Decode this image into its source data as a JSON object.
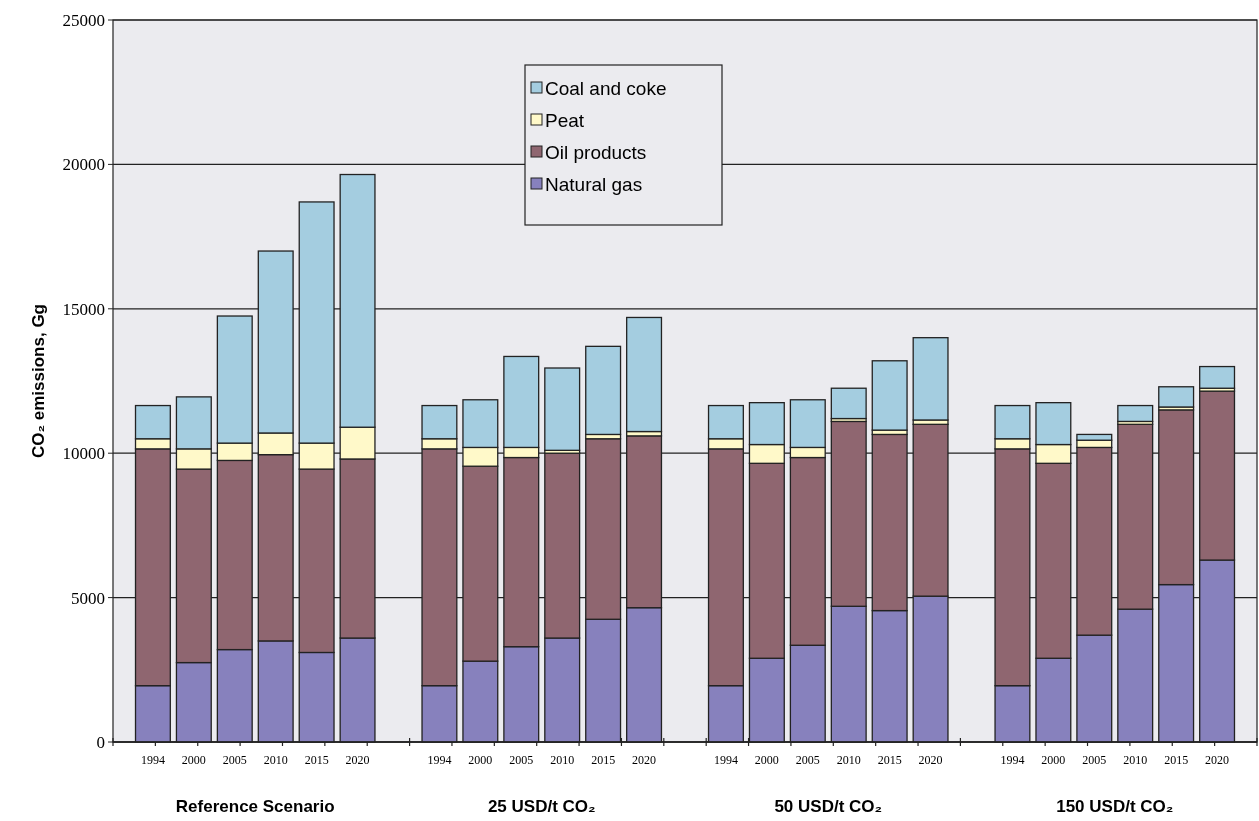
{
  "chart_data": {
    "type": "bar",
    "stacked": true,
    "ylabel": "CO₂ emissions, Gg",
    "categories": [
      "1994",
      "2000",
      "2005",
      "2010",
      "2015",
      "2020",
      null,
      "1994",
      "2000",
      "2005",
      "2010",
      "2015",
      "2020",
      null,
      "1994",
      "2000",
      "2005",
      "2010",
      "2015",
      "2020",
      null,
      "1994",
      "2000",
      "2005",
      "2010",
      "2015",
      "2020"
    ],
    "series": [
      {
        "name": "Natural gas",
        "color": "#8781bd",
        "values": [
          1950,
          2750,
          3200,
          3500,
          3100,
          3600,
          null,
          1950,
          2800,
          3300,
          3600,
          4250,
          4650,
          null,
          1950,
          2900,
          3350,
          4700,
          4550,
          5050,
          null,
          1950,
          2900,
          3700,
          4600,
          5450,
          6300
        ]
      },
      {
        "name": "Oil products",
        "color": "#8f6670",
        "values": [
          8200,
          6700,
          6550,
          6450,
          6350,
          6200,
          null,
          8200,
          6750,
          6550,
          6400,
          6250,
          5950,
          null,
          8200,
          6750,
          6500,
          6400,
          6100,
          5950,
          null,
          8200,
          6750,
          6500,
          6400,
          6050,
          5850
        ]
      },
      {
        "name": "Peat",
        "color": "#fff9c9",
        "values": [
          350,
          700,
          600,
          750,
          900,
          1100,
          null,
          350,
          650,
          350,
          100,
          150,
          150,
          null,
          350,
          650,
          350,
          100,
          150,
          150,
          null,
          350,
          650,
          250,
          100,
          100,
          100
        ]
      },
      {
        "name": "Coal and coke",
        "color": "#a4cde0",
        "values": [
          1150,
          1800,
          4400,
          6300,
          8350,
          8750,
          null,
          1150,
          1650,
          3150,
          2850,
          3050,
          3950,
          null,
          1150,
          1450,
          1650,
          1050,
          2400,
          2850,
          null,
          1150,
          1450,
          200,
          550,
          700,
          750
        ]
      }
    ],
    "ylim": [
      0,
      25000
    ],
    "yticks": [
      0,
      5000,
      10000,
      15000,
      20000,
      25000
    ],
    "grid": "y",
    "legend": "top",
    "annotations": [
      "Reference Scenario",
      "25 USD/t CO₂",
      "50 USD/t CO₂",
      "150 USD/t CO₂"
    ]
  }
}
